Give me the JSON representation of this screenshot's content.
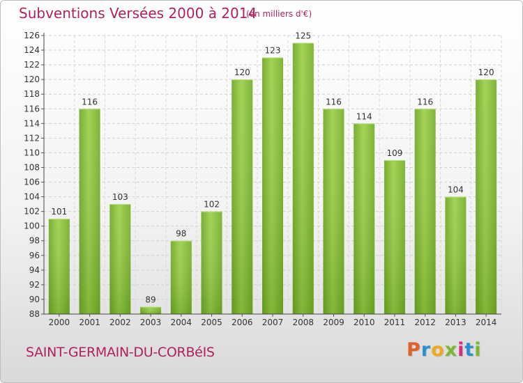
{
  "header": {
    "title": "Subventions Versées 2000 à 2014",
    "subtitle": "(en milliers d'€)"
  },
  "footer": {
    "commune": "SAINT-GERMAIN-DU-CORBéIS",
    "logo_letters": [
      "P",
      "r",
      "o",
      "x",
      "i",
      "t",
      "i"
    ],
    "logo_colors": [
      "#e0612a",
      "#2c8fd0",
      "#f2a81d",
      "#7cb82f",
      "#d52e7c",
      "#2c8fd0",
      "#7cb82f"
    ]
  },
  "chart_data": {
    "type": "bar",
    "title": "Subventions Versées 2000 à 2014",
    "subtitle": "(en milliers d'€)",
    "categories": [
      "2000",
      "2001",
      "2002",
      "2003",
      "2004",
      "2005",
      "2006",
      "2007",
      "2008",
      "2009",
      "2010",
      "2011",
      "2012",
      "2013",
      "2014"
    ],
    "values": [
      101,
      116,
      103,
      89,
      98,
      102,
      120,
      123,
      125,
      116,
      114,
      109,
      116,
      104,
      120
    ],
    "ylim": [
      88,
      126
    ],
    "yticks": [
      88,
      90,
      92,
      94,
      96,
      98,
      100,
      102,
      104,
      106,
      108,
      110,
      112,
      114,
      116,
      118,
      120,
      122,
      124,
      126
    ],
    "grid": true,
    "bar_color": "#7fbb2c"
  }
}
